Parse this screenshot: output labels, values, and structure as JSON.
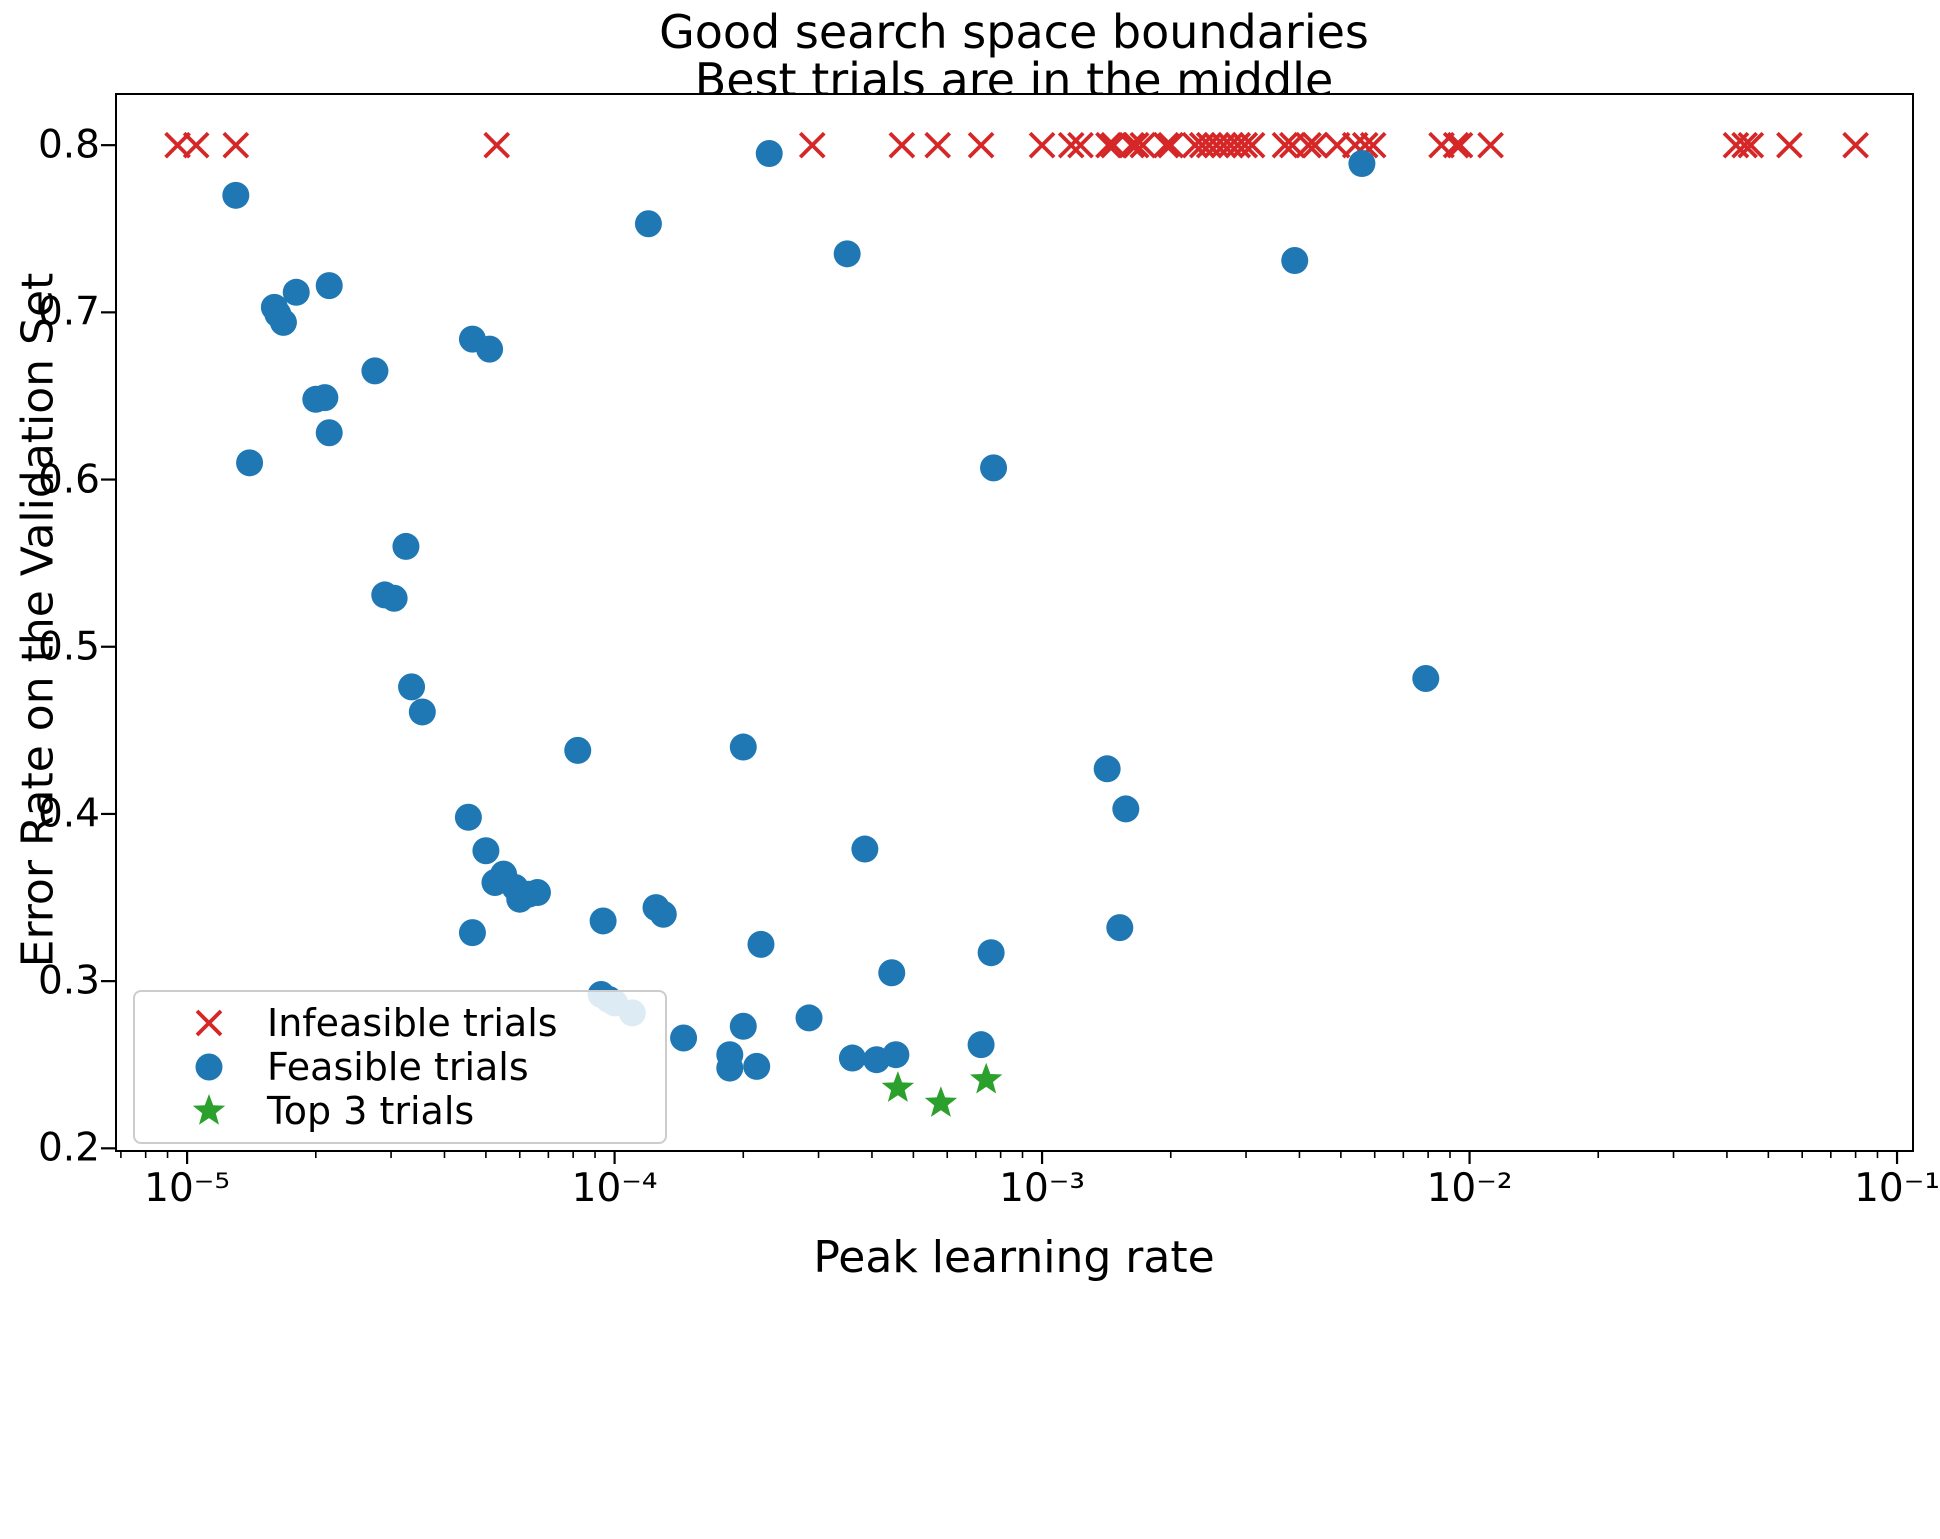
{
  "chart_data": {
    "type": "scatter",
    "title_line1": "Good search space boundaries",
    "title_line2": "Best trials are in the middle",
    "xlabel": "Peak learning rate",
    "ylabel": "Error Rate on the Validation Set",
    "x_scale": "log",
    "xlim_log10": [
      -5.164,
      -0.965
    ],
    "ylim": [
      0.199,
      0.83
    ],
    "grid": false,
    "legend_position": "lower left",
    "x_ticks": [
      {
        "value": 1e-05,
        "label": "10⁻⁵"
      },
      {
        "value": 0.0001,
        "label": "10⁻⁴"
      },
      {
        "value": 0.001,
        "label": "10⁻³"
      },
      {
        "value": 0.01,
        "label": "10⁻²"
      },
      {
        "value": 0.1,
        "label": "10⁻¹"
      }
    ],
    "y_ticks": [
      {
        "value": 0.2,
        "label": "0.2"
      },
      {
        "value": 0.3,
        "label": "0.3"
      },
      {
        "value": 0.4,
        "label": "0.4"
      },
      {
        "value": 0.5,
        "label": "0.5"
      },
      {
        "value": 0.6,
        "label": "0.6"
      },
      {
        "value": 0.7,
        "label": "0.7"
      },
      {
        "value": 0.8,
        "label": "0.8"
      }
    ],
    "legend": [
      {
        "label": "Infeasible trials",
        "marker": "x",
        "color": "#d62728"
      },
      {
        "label": "Feasible trials",
        "marker": "circle",
        "color": "#1f77b4"
      },
      {
        "label": "Top 3 trials",
        "marker": "star",
        "color": "#2ca02c"
      }
    ],
    "series": [
      {
        "name": "Infeasible trials",
        "marker": "x",
        "color": "#d62728",
        "data_name": "infeasible-x-marker",
        "y": 0.8,
        "x": [
          9.5e-06,
          1.05e-05,
          1.3e-05,
          5.3e-05,
          0.00029,
          0.00047,
          0.00057,
          0.00072,
          0.001,
          0.00117,
          0.00123,
          0.00143,
          0.00147,
          0.00162,
          0.00166,
          0.00172,
          0.00195,
          0.002,
          0.00228,
          0.00237,
          0.00246,
          0.00256,
          0.00266,
          0.00276,
          0.00287,
          0.00298,
          0.0031,
          0.0037,
          0.00385,
          0.0042,
          0.00435,
          0.0049,
          0.0054,
          0.0057,
          0.00595,
          0.0086,
          0.0093,
          0.0095,
          0.0112,
          0.042,
          0.044,
          0.0455,
          0.056,
          0.08
        ]
      },
      {
        "name": "Feasible trials",
        "marker": "circle",
        "color": "#1f77b4",
        "data_name": "feasible-dot-marker",
        "points": [
          [
            1.3e-05,
            0.77
          ],
          [
            1.4e-05,
            0.61
          ],
          [
            1.6e-05,
            0.703
          ],
          [
            1.63e-05,
            0.699
          ],
          [
            1.68e-05,
            0.694
          ],
          [
            1.8e-05,
            0.712
          ],
          [
            2.15e-05,
            0.716
          ],
          [
            2e-05,
            0.648
          ],
          [
            2.1e-05,
            0.649
          ],
          [
            2.15e-05,
            0.628
          ],
          [
            2.75e-05,
            0.665
          ],
          [
            2.9e-05,
            0.531
          ],
          [
            3.05e-05,
            0.529
          ],
          [
            3.25e-05,
            0.56
          ],
          [
            3.35e-05,
            0.476
          ],
          [
            3.55e-05,
            0.461
          ],
          [
            4.65e-05,
            0.684
          ],
          [
            5.1e-05,
            0.678
          ],
          [
            4.55e-05,
            0.398
          ],
          [
            4.65e-05,
            0.329
          ],
          [
            5e-05,
            0.378
          ],
          [
            5.25e-05,
            0.359
          ],
          [
            5.5e-05,
            0.364
          ],
          [
            5.85e-05,
            0.356
          ],
          [
            6e-05,
            0.349
          ],
          [
            6.3e-05,
            0.352
          ],
          [
            6.6e-05,
            0.353
          ],
          [
            8.2e-05,
            0.438
          ],
          [
            9.3e-05,
            0.292
          ],
          [
            9.4e-05,
            0.336
          ],
          [
            9.7e-05,
            0.289
          ],
          [
            0.0001,
            0.287
          ],
          [
            0.00011,
            0.281
          ],
          [
            0.00012,
            0.753
          ],
          [
            0.000125,
            0.344
          ],
          [
            0.00013,
            0.34
          ],
          [
            0.000145,
            0.266
          ],
          [
            0.000186,
            0.256
          ],
          [
            0.000186,
            0.248
          ],
          [
            0.0002,
            0.273
          ],
          [
            0.000215,
            0.249
          ],
          [
            0.0002,
            0.44
          ],
          [
            0.00022,
            0.322
          ],
          [
            0.00023,
            0.795
          ],
          [
            0.000285,
            0.278
          ],
          [
            0.00035,
            0.735
          ],
          [
            0.00036,
            0.254
          ],
          [
            0.000385,
            0.379
          ],
          [
            0.00041,
            0.253
          ],
          [
            0.000445,
            0.305
          ],
          [
            0.000455,
            0.256
          ],
          [
            0.00072,
            0.262
          ],
          [
            0.00076,
            0.317
          ],
          [
            0.00077,
            0.607
          ],
          [
            0.00142,
            0.427
          ],
          [
            0.00152,
            0.332
          ],
          [
            0.00157,
            0.403
          ],
          [
            0.0039,
            0.731
          ],
          [
            0.0056,
            0.789
          ],
          [
            0.0079,
            0.481
          ]
        ]
      },
      {
        "name": "Top 3 trials",
        "marker": "star",
        "color": "#2ca02c",
        "data_name": "top3-star-marker",
        "points": [
          [
            0.00046,
            0.236
          ],
          [
            0.00058,
            0.227
          ],
          [
            0.00074,
            0.241
          ]
        ]
      }
    ]
  }
}
